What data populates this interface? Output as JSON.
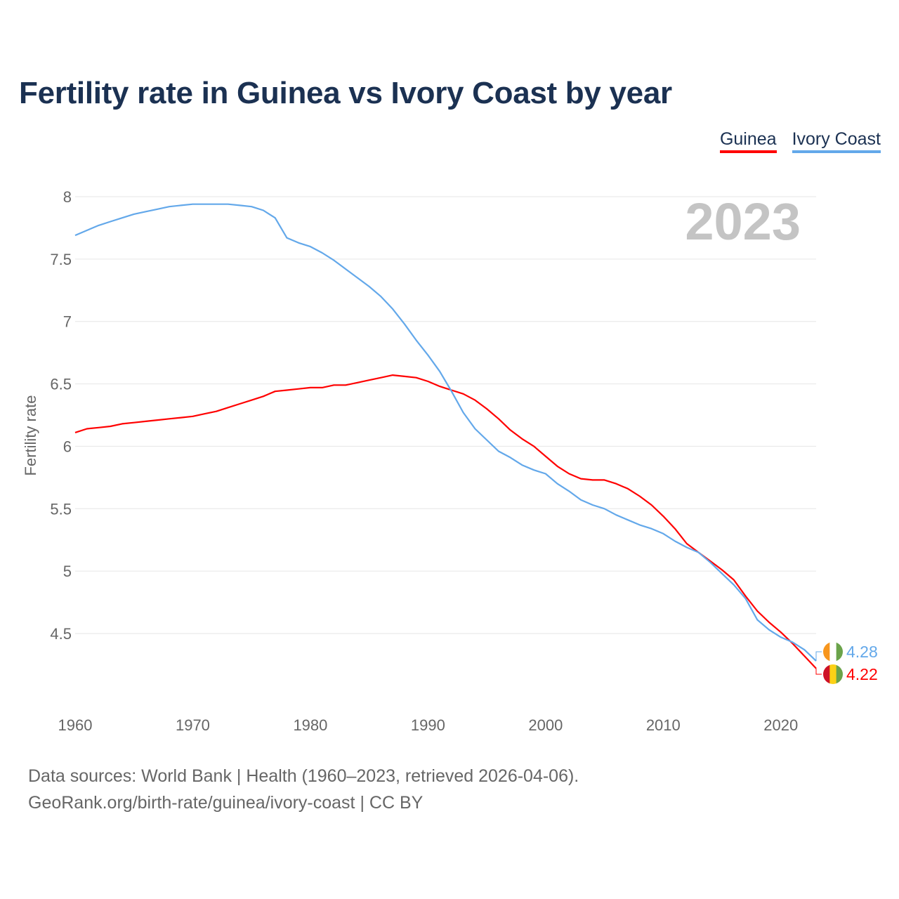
{
  "title": "Fertility rate in Guinea vs Ivory Coast by year",
  "legend": [
    {
      "label": "Guinea",
      "color": "#ff0000"
    },
    {
      "label": "Ivory Coast",
      "color": "#63a8ea"
    }
  ],
  "year_watermark": "2023",
  "source_line1": "Data sources: World Bank | Health (1960–2023, retrieved 2026-04-06).",
  "source_line2": "GeoRank.org/birth-rate/guinea/ivory-coast | CC BY",
  "chart_data": {
    "type": "line",
    "title": "Fertility rate in Guinea vs Ivory Coast by year",
    "xlabel": "",
    "ylabel": "Fertility rate",
    "xlim": [
      1960,
      2023
    ],
    "ylim": [
      4.0,
      8.15
    ],
    "x_ticks": [
      1960,
      1970,
      1980,
      1990,
      2000,
      2010,
      2020
    ],
    "y_ticks": [
      4.5,
      5,
      5.5,
      6,
      6.5,
      7,
      7.5,
      8
    ],
    "grid": true,
    "legend_position": "top-right",
    "x_start": 1960,
    "series": [
      {
        "name": "Guinea",
        "color": "#ff0000",
        "end_label": "4.22",
        "values": [
          6.11,
          6.14,
          6.15,
          6.16,
          6.18,
          6.19,
          6.2,
          6.21,
          6.22,
          6.23,
          6.24,
          6.26,
          6.28,
          6.31,
          6.34,
          6.37,
          6.4,
          6.44,
          6.45,
          6.46,
          6.47,
          6.47,
          6.49,
          6.49,
          6.51,
          6.53,
          6.55,
          6.57,
          6.56,
          6.55,
          6.52,
          6.48,
          6.45,
          6.42,
          6.37,
          6.3,
          6.22,
          6.13,
          6.06,
          6.0,
          5.92,
          5.84,
          5.78,
          5.74,
          5.73,
          5.73,
          5.7,
          5.66,
          5.6,
          5.53,
          5.44,
          5.34,
          5.22,
          5.15,
          5.08,
          5.01,
          4.93,
          4.8,
          4.68,
          4.59,
          4.51,
          4.42,
          4.32,
          4.22
        ]
      },
      {
        "name": "Ivory Coast",
        "color": "#63a8ea",
        "end_label": "4.28",
        "values": [
          7.69,
          7.73,
          7.77,
          7.8,
          7.83,
          7.86,
          7.88,
          7.9,
          7.92,
          7.93,
          7.94,
          7.94,
          7.94,
          7.94,
          7.93,
          7.92,
          7.89,
          7.83,
          7.67,
          7.63,
          7.6,
          7.55,
          7.49,
          7.42,
          7.35,
          7.28,
          7.2,
          7.1,
          6.98,
          6.85,
          6.73,
          6.6,
          6.44,
          6.27,
          6.14,
          6.05,
          5.96,
          5.91,
          5.85,
          5.81,
          5.78,
          5.7,
          5.64,
          5.57,
          5.53,
          5.5,
          5.45,
          5.41,
          5.37,
          5.34,
          5.3,
          5.24,
          5.19,
          5.15,
          5.07,
          4.98,
          4.89,
          4.78,
          4.61,
          4.53,
          4.47,
          4.43,
          4.37,
          4.28
        ]
      }
    ]
  }
}
